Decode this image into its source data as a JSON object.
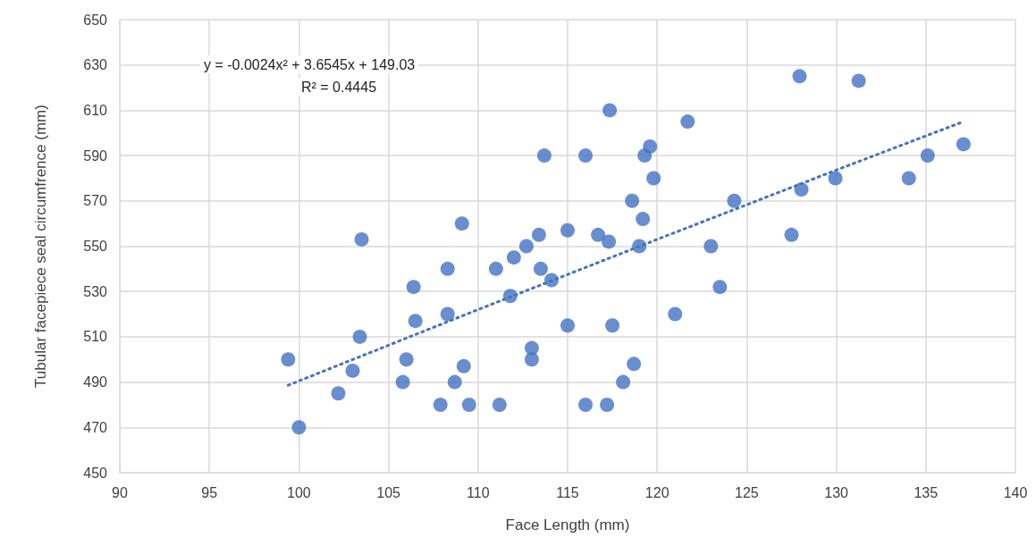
{
  "chart_data": {
    "type": "scatter",
    "xlabel": "Face Length (mm)",
    "ylabel": "Tubular facepiece seal circumfrence (mm)",
    "xlim": [
      90,
      140
    ],
    "xticks": [
      90,
      95,
      100,
      105,
      110,
      115,
      120,
      125,
      130,
      135,
      140
    ],
    "ylim": [
      450,
      650
    ],
    "yticks": [
      450,
      470,
      490,
      510,
      530,
      550,
      570,
      590,
      610,
      630,
      650
    ],
    "grid": true,
    "marker": "circle",
    "annotations": [
      "y = -0.0024x² + 3.6545x + 149.03",
      "R² = 0.4445"
    ],
    "series": [
      {
        "color": "#4472c4",
        "x": [
          99.4,
          100,
          102.2,
          103.0,
          103.4,
          103.5,
          105.8,
          106.0,
          106.4,
          106.5,
          107.9,
          108.3,
          108.3,
          108.7,
          109.1,
          109.2,
          109.5,
          111.0,
          111.2,
          111.8,
          112.0,
          112.7,
          113.0,
          113.0,
          113.4,
          113.5,
          113.7,
          114.1,
          115.0,
          115.0,
          116.0,
          116.0,
          116.7,
          117.2,
          117.3,
          117.35,
          117.5,
          118.1,
          118.6,
          118.7,
          119.0,
          119.2,
          119.3,
          119.6,
          119.8,
          121.0,
          121.7,
          123.0,
          123.5,
          124.3,
          127.5,
          127.95,
          128.05,
          129.95,
          131.25,
          134.05,
          135.1,
          137.1
        ],
        "values": [
          500,
          470,
          485,
          495,
          510,
          553,
          490,
          500,
          532,
          517,
          480,
          540,
          520,
          490,
          560,
          497,
          480,
          540,
          480,
          528,
          545,
          550,
          505,
          500,
          555,
          540,
          590,
          535,
          557,
          515,
          590,
          480,
          555,
          480,
          552,
          610,
          515,
          490,
          570,
          498,
          550,
          562,
          590,
          594,
          580,
          520,
          605,
          550,
          532,
          570,
          555,
          625,
          575,
          580,
          623,
          580,
          590,
          595
        ]
      },
      {
        "type": "line",
        "color": "#4472c4",
        "marker": "none",
        "line_style": "dotted",
        "x": [
          99.4,
          110,
          120,
          130,
          137
        ],
        "values": [
          488.6,
          522.0,
          553.0,
          583.6,
          604.7
        ]
      }
    ]
  }
}
